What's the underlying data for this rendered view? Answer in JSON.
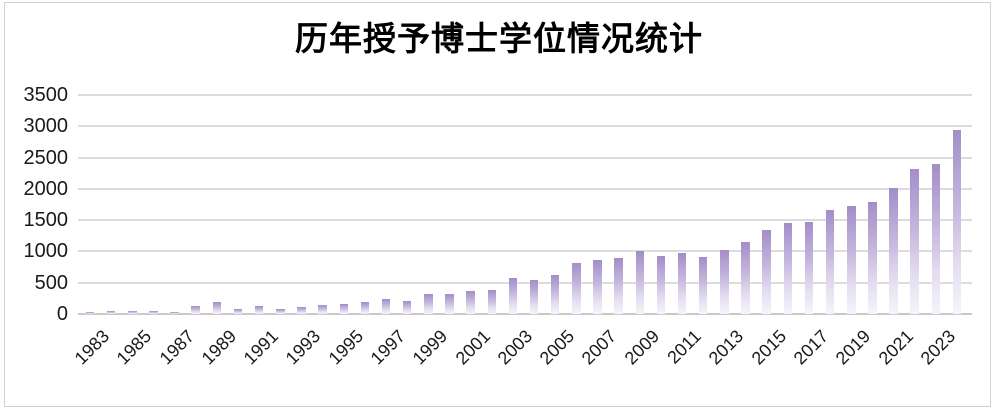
{
  "chart_data": {
    "type": "bar",
    "title": "历年授予博士学位情况统计",
    "xlabel": "",
    "ylabel": "",
    "x": [
      1983,
      1984,
      1985,
      1986,
      1987,
      1988,
      1989,
      1990,
      1991,
      1992,
      1993,
      1994,
      1995,
      1996,
      1997,
      1998,
      1999,
      2000,
      2001,
      2002,
      2003,
      2004,
      2005,
      2006,
      2007,
      2008,
      2009,
      2010,
      2011,
      2012,
      2013,
      2014,
      2015,
      2016,
      2017,
      2018,
      2019,
      2020,
      2021,
      2022,
      2023,
      2024
    ],
    "values": [
      25,
      50,
      45,
      50,
      25,
      130,
      200,
      75,
      130,
      85,
      120,
      140,
      165,
      185,
      235,
      210,
      320,
      315,
      360,
      390,
      575,
      550,
      620,
      815,
      860,
      890,
      1015,
      920,
      970,
      905,
      1030,
      1150,
      1340,
      1460,
      1475,
      1670,
      1720,
      1790,
      2015,
      2320,
      2390,
      2945
    ],
    "x_tick_labels": [
      "1983",
      "1985",
      "1987",
      "1989",
      "1991",
      "1993",
      "1995",
      "1997",
      "1999",
      "2001",
      "2003",
      "2005",
      "2007",
      "2009",
      "2011",
      "2013",
      "2015",
      "2017",
      "2019",
      "2021",
      "2023"
    ],
    "y_ticks": [
      0,
      500,
      1000,
      1500,
      2000,
      2500,
      3000,
      3500
    ],
    "ylim": [
      0,
      3500
    ],
    "grid": "horizontal",
    "legend": "none",
    "colors": {
      "bar_gradient_top": "#a38dc8",
      "bar_gradient_mid": "#c5b6dd",
      "bar_gradient_bottom": "#f6f4fb",
      "gridline": "#dcdcdc",
      "axis_line": "#c9c9c9",
      "frame_border": "#cfd0d2",
      "title_color": "#000000",
      "tick_label_color": "#1a1a1a",
      "background": "#ffffff"
    }
  }
}
